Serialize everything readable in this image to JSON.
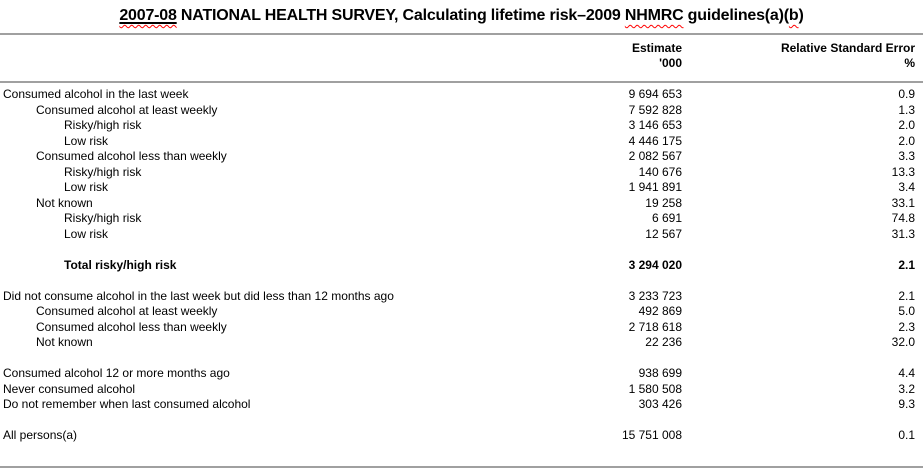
{
  "title": {
    "part_year": "2007-08",
    "part_main": " NATIONAL HEALTH SURVEY, Calculating lifetime risk–2009 ",
    "part_nhmrc": "NHMRC",
    "part_guidelines": " guidelines(a)(",
    "part_b": "b",
    "part_close": ")"
  },
  "columns": {
    "estimate": {
      "line1": "Estimate",
      "line2": "'000"
    },
    "rse": {
      "line1": "Relative Standard Error",
      "line2": "%"
    }
  },
  "colors": {
    "rule": "#a0a0a0",
    "spellcheck_underline": "#ff0000",
    "text": "#000000",
    "background": "#ffffff"
  },
  "table": {
    "rows": [
      {
        "label": "Consumed alcohol in the last week",
        "indent": 0,
        "est": "9 694 653",
        "rse": "0.9"
      },
      {
        "label": "Consumed alcohol at least weekly",
        "indent": 1,
        "est": "7 592 828",
        "rse": "1.3"
      },
      {
        "label": "Risky/high risk",
        "indent": 2,
        "est": "3 146 653",
        "rse": "2.0"
      },
      {
        "label": "Low risk",
        "indent": 2,
        "est": "4 446 175",
        "rse": "2.0"
      },
      {
        "label": "Consumed alcohol less than weekly",
        "indent": 1,
        "est": "2 082 567",
        "rse": "3.3"
      },
      {
        "label": "Risky/high risk",
        "indent": 2,
        "est": "140 676",
        "rse": "13.3"
      },
      {
        "label": "Low risk",
        "indent": 2,
        "est": "1 941 891",
        "rse": "3.4"
      },
      {
        "label": "Not known",
        "indent": 1,
        "est": "19 258",
        "rse": "33.1"
      },
      {
        "label": "Risky/high risk",
        "indent": 2,
        "est": "6 691",
        "rse": "74.8"
      },
      {
        "label": "Low risk",
        "indent": 2,
        "est": "12 567",
        "rse": "31.3"
      },
      {
        "spacer": true
      },
      {
        "label": "Total risky/high risk",
        "indent": 2,
        "est": "3 294 020",
        "rse": "2.1",
        "bold": true
      },
      {
        "spacer": true
      },
      {
        "label": "Did not consume alcohol in the last week but did less than 12 months ago",
        "indent": 0,
        "est": "3 233 723",
        "rse": "2.1"
      },
      {
        "label": "Consumed alcohol at least weekly",
        "indent": 1,
        "est": "492 869",
        "rse": "5.0"
      },
      {
        "label": "Consumed alcohol less than weekly",
        "indent": 1,
        "est": "2 718 618",
        "rse": "2.3"
      },
      {
        "label": "Not known",
        "indent": 1,
        "est": "22 236",
        "rse": "32.0"
      },
      {
        "spacer": true
      },
      {
        "label": "Consumed alcohol 12 or more months ago",
        "indent": 0,
        "est": "938 699",
        "rse": "4.4"
      },
      {
        "label": "Never consumed alcohol",
        "indent": 0,
        "est": "1 580 508",
        "rse": "3.2"
      },
      {
        "label": "Do not remember when last consumed alcohol",
        "indent": 0,
        "est": "303 426",
        "rse": "9.3"
      },
      {
        "spacer": true
      },
      {
        "label": "All persons(a)",
        "indent": 0,
        "est": "15 751 008",
        "rse": "0.1"
      }
    ]
  }
}
